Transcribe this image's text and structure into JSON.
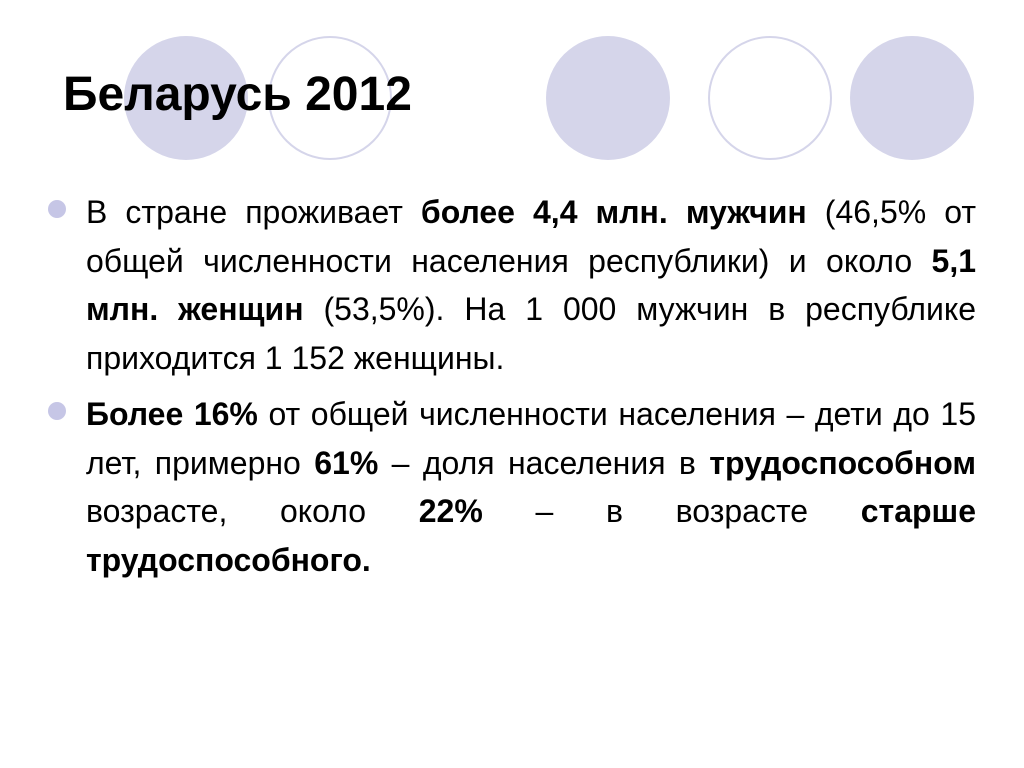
{
  "slide": {
    "title": "Беларусь 2012",
    "accent_color": "#d5d5ea",
    "bullet_color": "#c6c6e6",
    "bullets": [
      {
        "runs": [
          {
            "text": "В стране проживает ",
            "bold": false
          },
          {
            "text": "более 4,4 млн. мужчин",
            "bold": true
          },
          {
            "text": " (46,5% от общей численности населения республики) и около ",
            "bold": false
          },
          {
            "text": "5,1 млн. женщин",
            "bold": true
          },
          {
            "text": " (53,5%). На 1 000 мужчин в республике приходится 1 152 женщины.",
            "bold": false
          }
        ]
      },
      {
        "runs": [
          {
            "text": "Более 16%",
            "bold": true
          },
          {
            "text": " от общей численности населения – дети до 15 лет, примерно ",
            "bold": false
          },
          {
            "text": "61%",
            "bold": true
          },
          {
            "text": " – доля населения в ",
            "bold": false
          },
          {
            "text": "трудоспособном",
            "bold": true
          },
          {
            "text": " возрасте, около ",
            "bold": false
          },
          {
            "text": "22%",
            "bold": true
          },
          {
            "text": " – в возрасте ",
            "bold": false
          },
          {
            "text": "старше трудоспособного.",
            "bold": true
          }
        ]
      }
    ]
  }
}
